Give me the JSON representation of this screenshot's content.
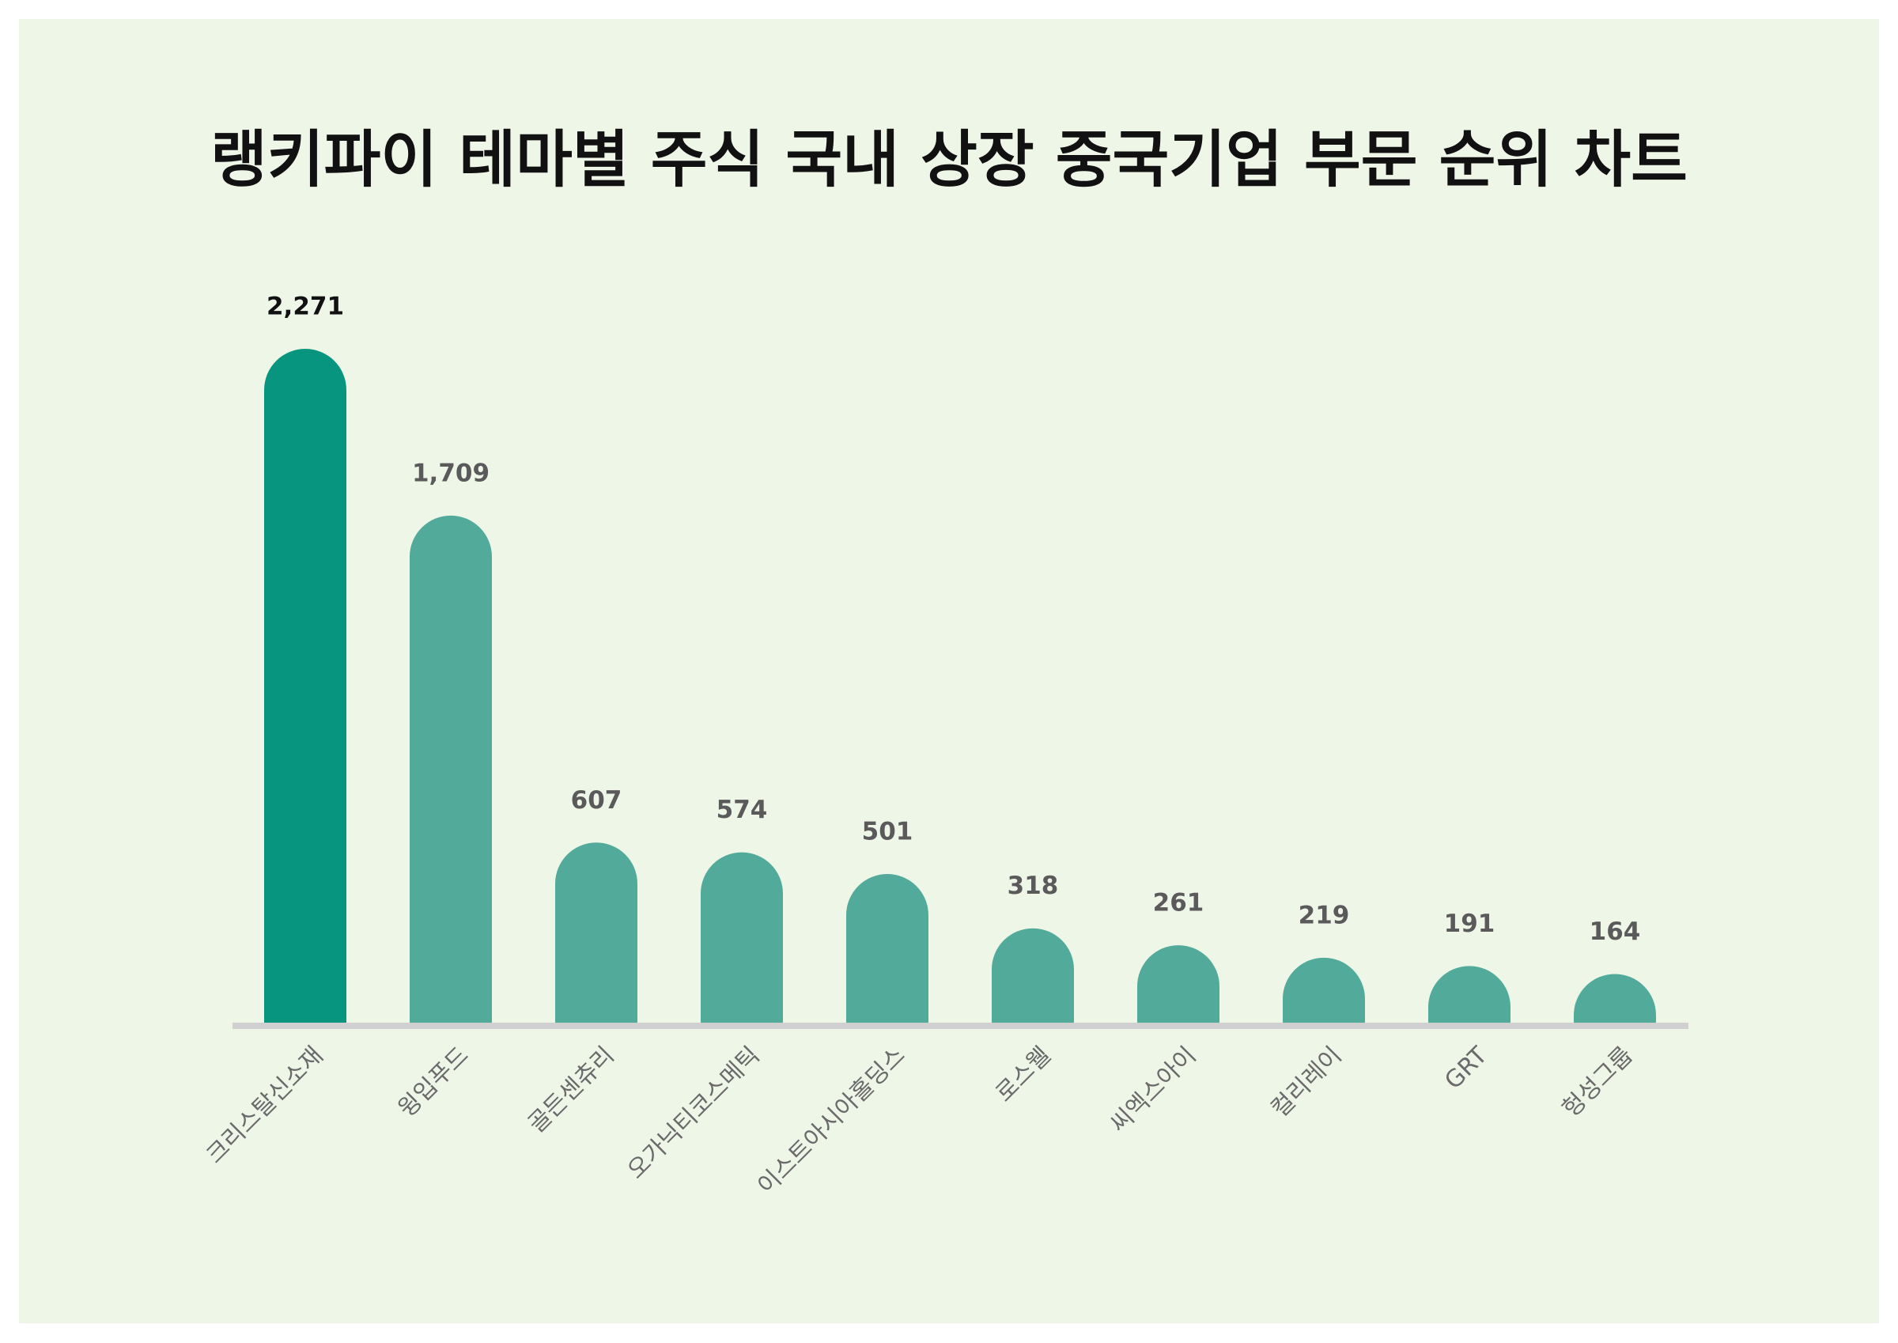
{
  "chart_data": {
    "type": "bar",
    "title": "랭키파이 테마별 주식 국내 상장 중국기업 부문 순위 차트",
    "categories": [
      "크리스탈신소재",
      "윙입푸드",
      "골든센츄리",
      "오가닉티코스메틱",
      "이스트아시아홀딩스",
      "로스웰",
      "씨엑스아이",
      "컬리레이",
      "GRT",
      "헝성그룹"
    ],
    "values": [
      2271,
      1709,
      607,
      574,
      501,
      318,
      261,
      219,
      191,
      164
    ],
    "value_labels": [
      "2,271",
      "1,709",
      "607",
      "574",
      "501",
      "318",
      "261",
      "219",
      "191",
      "164"
    ],
    "colors": [
      "#08957f",
      "#52aa9a",
      "#52aa9a",
      "#52aa9a",
      "#52aa9a",
      "#52aa9a",
      "#52aa9a",
      "#52aa9a",
      "#52aa9a",
      "#52aa9a"
    ]
  }
}
